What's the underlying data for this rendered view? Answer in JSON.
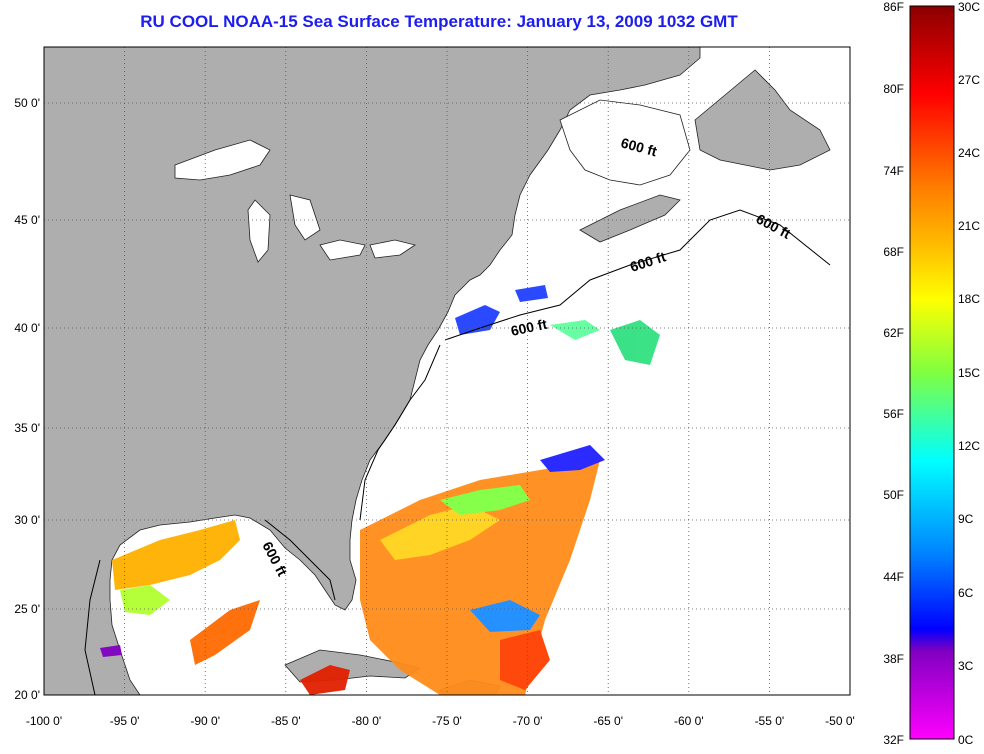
{
  "title": "RU COOL  NOAA-15  Sea Surface Temperature:  January 13, 2009 1032 GMT",
  "map": {
    "lon_range": [
      -100,
      -50
    ],
    "lat_range": [
      20,
      52.5
    ],
    "lon_ticks": [
      "-100 0'",
      "-95 0'",
      "-90 0'",
      "-85 0'",
      "-80 0'",
      "-75 0'",
      "-70 0'",
      "-65 0'",
      "-60 0'",
      "-55 0'",
      "-50 0'"
    ],
    "lat_ticks": [
      "20 0'",
      "25 0'",
      "30 0'",
      "35 0'",
      "40 0'",
      "45 0'",
      "50 0'"
    ],
    "grid": "dotted",
    "land_color": "#aeaeae",
    "ocean_color": "#ffffff"
  },
  "contour_labels": [
    "600 ft",
    "600 ft",
    "600 ft",
    "600 ft",
    "600 ft"
  ],
  "colorbar": {
    "fahrenheit": [
      "86F",
      "80F",
      "74F",
      "68F",
      "62F",
      "56F",
      "50F",
      "44F",
      "38F",
      "32F"
    ],
    "celsius": [
      "30C",
      "27C",
      "24C",
      "21C",
      "18C",
      "15C",
      "12C",
      "9C",
      "6C",
      "3C",
      "0C"
    ],
    "colors": [
      "#8b0000",
      "#ff0000",
      "#ff8c00",
      "#ffff00",
      "#7fff00",
      "#00ff9f",
      "#00ffff",
      "#0080ff",
      "#0000ff",
      "#8000c0",
      "#ff00ff"
    ]
  }
}
